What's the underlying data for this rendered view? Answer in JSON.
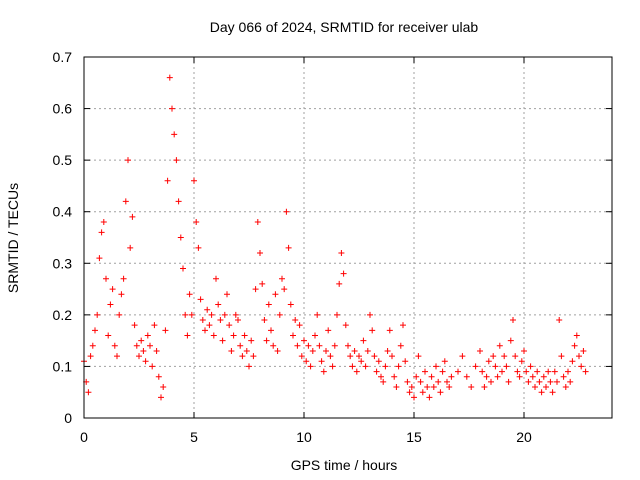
{
  "chart_data": {
    "type": "scatter",
    "title": "Day 066 of 2024, SRMTID for receiver ulab",
    "xlabel": "GPS time / hours",
    "ylabel": "SRMTID / TECUs",
    "xlim": [
      0,
      24
    ],
    "ylim": [
      0,
      0.7
    ],
    "xticks": [
      0,
      5,
      10,
      15,
      20
    ],
    "yticks": [
      0,
      0.1,
      0.2,
      0.3,
      0.4,
      0.5,
      0.6,
      0.7
    ],
    "grid": true,
    "marker": "+",
    "color": "#ff0000",
    "series": [
      {
        "name": "SRMTID",
        "points": [
          [
            0.0,
            0.11
          ],
          [
            0.1,
            0.07
          ],
          [
            0.2,
            0.05
          ],
          [
            0.3,
            0.12
          ],
          [
            0.4,
            0.14
          ],
          [
            0.5,
            0.17
          ],
          [
            0.6,
            0.2
          ],
          [
            0.7,
            0.31
          ],
          [
            0.8,
            0.36
          ],
          [
            0.9,
            0.38
          ],
          [
            1.0,
            0.27
          ],
          [
            1.1,
            0.16
          ],
          [
            1.2,
            0.22
          ],
          [
            1.3,
            0.25
          ],
          [
            1.4,
            0.14
          ],
          [
            1.5,
            0.12
          ],
          [
            1.6,
            0.2
          ],
          [
            1.7,
            0.24
          ],
          [
            1.8,
            0.27
          ],
          [
            1.9,
            0.42
          ],
          [
            2.0,
            0.5
          ],
          [
            2.1,
            0.33
          ],
          [
            2.2,
            0.39
          ],
          [
            2.3,
            0.18
          ],
          [
            2.4,
            0.14
          ],
          [
            2.5,
            0.12
          ],
          [
            2.6,
            0.15
          ],
          [
            2.7,
            0.13
          ],
          [
            2.8,
            0.11
          ],
          [
            2.9,
            0.16
          ],
          [
            3.0,
            0.14
          ],
          [
            3.1,
            0.1
          ],
          [
            3.2,
            0.18
          ],
          [
            3.3,
            0.13
          ],
          [
            3.4,
            0.08
          ],
          [
            3.5,
            0.04
          ],
          [
            3.6,
            0.06
          ],
          [
            3.7,
            0.17
          ],
          [
            3.8,
            0.46
          ],
          [
            3.9,
            0.66
          ],
          [
            4.0,
            0.6
          ],
          [
            4.1,
            0.55
          ],
          [
            4.2,
            0.5
          ],
          [
            4.3,
            0.42
          ],
          [
            4.4,
            0.35
          ],
          [
            4.5,
            0.29
          ],
          [
            4.6,
            0.2
          ],
          [
            4.7,
            0.16
          ],
          [
            4.8,
            0.24
          ],
          [
            4.9,
            0.2
          ],
          [
            5.0,
            0.46
          ],
          [
            5.1,
            0.38
          ],
          [
            5.2,
            0.33
          ],
          [
            5.3,
            0.23
          ],
          [
            5.4,
            0.19
          ],
          [
            5.5,
            0.17
          ],
          [
            5.6,
            0.21
          ],
          [
            5.7,
            0.18
          ],
          [
            5.8,
            0.2
          ],
          [
            5.9,
            0.16
          ],
          [
            6.0,
            0.27
          ],
          [
            6.1,
            0.22
          ],
          [
            6.2,
            0.19
          ],
          [
            6.3,
            0.15
          ],
          [
            6.4,
            0.2
          ],
          [
            6.5,
            0.24
          ],
          [
            6.6,
            0.18
          ],
          [
            6.7,
            0.13
          ],
          [
            6.8,
            0.16
          ],
          [
            6.9,
            0.2
          ],
          [
            7.0,
            0.19
          ],
          [
            7.1,
            0.14
          ],
          [
            7.2,
            0.12
          ],
          [
            7.3,
            0.16
          ],
          [
            7.4,
            0.13
          ],
          [
            7.5,
            0.1
          ],
          [
            7.6,
            0.15
          ],
          [
            7.7,
            0.12
          ],
          [
            7.8,
            0.25
          ],
          [
            7.9,
            0.38
          ],
          [
            8.0,
            0.32
          ],
          [
            8.1,
            0.26
          ],
          [
            8.2,
            0.19
          ],
          [
            8.3,
            0.15
          ],
          [
            8.4,
            0.22
          ],
          [
            8.5,
            0.17
          ],
          [
            8.6,
            0.14
          ],
          [
            8.7,
            0.24
          ],
          [
            8.8,
            0.13
          ],
          [
            8.9,
            0.2
          ],
          [
            9.0,
            0.27
          ],
          [
            9.1,
            0.25
          ],
          [
            9.2,
            0.4
          ],
          [
            9.3,
            0.33
          ],
          [
            9.4,
            0.22
          ],
          [
            9.5,
            0.16
          ],
          [
            9.6,
            0.19
          ],
          [
            9.7,
            0.14
          ],
          [
            9.8,
            0.18
          ],
          [
            9.9,
            0.12
          ],
          [
            10.0,
            0.15
          ],
          [
            10.1,
            0.11
          ],
          [
            10.2,
            0.14
          ],
          [
            10.3,
            0.1
          ],
          [
            10.4,
            0.13
          ],
          [
            10.5,
            0.16
          ],
          [
            10.6,
            0.2
          ],
          [
            10.7,
            0.14
          ],
          [
            10.8,
            0.11
          ],
          [
            10.9,
            0.09
          ],
          [
            11.0,
            0.13
          ],
          [
            11.1,
            0.17
          ],
          [
            11.2,
            0.12
          ],
          [
            11.3,
            0.1
          ],
          [
            11.4,
            0.14
          ],
          [
            11.5,
            0.2
          ],
          [
            11.6,
            0.26
          ],
          [
            11.7,
            0.32
          ],
          [
            11.8,
            0.28
          ],
          [
            11.9,
            0.18
          ],
          [
            12.0,
            0.14
          ],
          [
            12.1,
            0.12
          ],
          [
            12.2,
            0.1
          ],
          [
            12.3,
            0.13
          ],
          [
            12.4,
            0.09
          ],
          [
            12.5,
            0.12
          ],
          [
            12.6,
            0.11
          ],
          [
            12.7,
            0.15
          ],
          [
            12.8,
            0.1
          ],
          [
            12.9,
            0.13
          ],
          [
            13.0,
            0.2
          ],
          [
            13.1,
            0.17
          ],
          [
            13.2,
            0.12
          ],
          [
            13.3,
            0.09
          ],
          [
            13.4,
            0.11
          ],
          [
            13.5,
            0.08
          ],
          [
            13.6,
            0.07
          ],
          [
            13.7,
            0.1
          ],
          [
            13.8,
            0.13
          ],
          [
            13.9,
            0.17
          ],
          [
            14.0,
            0.12
          ],
          [
            14.1,
            0.08
          ],
          [
            14.2,
            0.06
          ],
          [
            14.3,
            0.1
          ],
          [
            14.4,
            0.14
          ],
          [
            14.5,
            0.18
          ],
          [
            14.6,
            0.11
          ],
          [
            14.7,
            0.07
          ],
          [
            14.8,
            0.05
          ],
          [
            14.9,
            0.06
          ],
          [
            15.0,
            0.04
          ],
          [
            15.1,
            0.08
          ],
          [
            15.2,
            0.12
          ],
          [
            15.3,
            0.07
          ],
          [
            15.4,
            0.05
          ],
          [
            15.5,
            0.09
          ],
          [
            15.6,
            0.06
          ],
          [
            15.7,
            0.04
          ],
          [
            15.8,
            0.08
          ],
          [
            15.9,
            0.06
          ],
          [
            16.0,
            0.1
          ],
          [
            16.1,
            0.07
          ],
          [
            16.2,
            0.05
          ],
          [
            16.3,
            0.09
          ],
          [
            16.4,
            0.11
          ],
          [
            16.5,
            0.07
          ],
          [
            16.6,
            0.06
          ],
          [
            16.7,
            0.08
          ],
          [
            17.0,
            0.09
          ],
          [
            17.2,
            0.12
          ],
          [
            17.4,
            0.08
          ],
          [
            17.6,
            0.06
          ],
          [
            17.8,
            0.1
          ],
          [
            18.0,
            0.13
          ],
          [
            18.1,
            0.09
          ],
          [
            18.2,
            0.06
          ],
          [
            18.3,
            0.08
          ],
          [
            18.4,
            0.11
          ],
          [
            18.5,
            0.07
          ],
          [
            18.6,
            0.12
          ],
          [
            18.7,
            0.1
          ],
          [
            18.8,
            0.08
          ],
          [
            18.9,
            0.14
          ],
          [
            19.0,
            0.09
          ],
          [
            19.1,
            0.12
          ],
          [
            19.2,
            0.1
          ],
          [
            19.3,
            0.07
          ],
          [
            19.4,
            0.15
          ],
          [
            19.5,
            0.19
          ],
          [
            19.6,
            0.12
          ],
          [
            19.7,
            0.09
          ],
          [
            19.8,
            0.08
          ],
          [
            19.9,
            0.11
          ],
          [
            20.0,
            0.13
          ],
          [
            20.1,
            0.09
          ],
          [
            20.2,
            0.07
          ],
          [
            20.3,
            0.1
          ],
          [
            20.4,
            0.08
          ],
          [
            20.5,
            0.06
          ],
          [
            20.6,
            0.09
          ],
          [
            20.7,
            0.07
          ],
          [
            20.8,
            0.05
          ],
          [
            20.9,
            0.08
          ],
          [
            21.0,
            0.06
          ],
          [
            21.1,
            0.09
          ],
          [
            21.2,
            0.07
          ],
          [
            21.3,
            0.05
          ],
          [
            21.4,
            0.09
          ],
          [
            21.5,
            0.07
          ],
          [
            21.6,
            0.19
          ],
          [
            21.7,
            0.12
          ],
          [
            21.8,
            0.08
          ],
          [
            21.9,
            0.06
          ],
          [
            22.0,
            0.09
          ],
          [
            22.1,
            0.07
          ],
          [
            22.2,
            0.11
          ],
          [
            22.3,
            0.14
          ],
          [
            22.4,
            0.16
          ],
          [
            22.5,
            0.12
          ],
          [
            22.6,
            0.1
          ],
          [
            22.7,
            0.13
          ],
          [
            22.8,
            0.09
          ]
        ]
      }
    ]
  }
}
